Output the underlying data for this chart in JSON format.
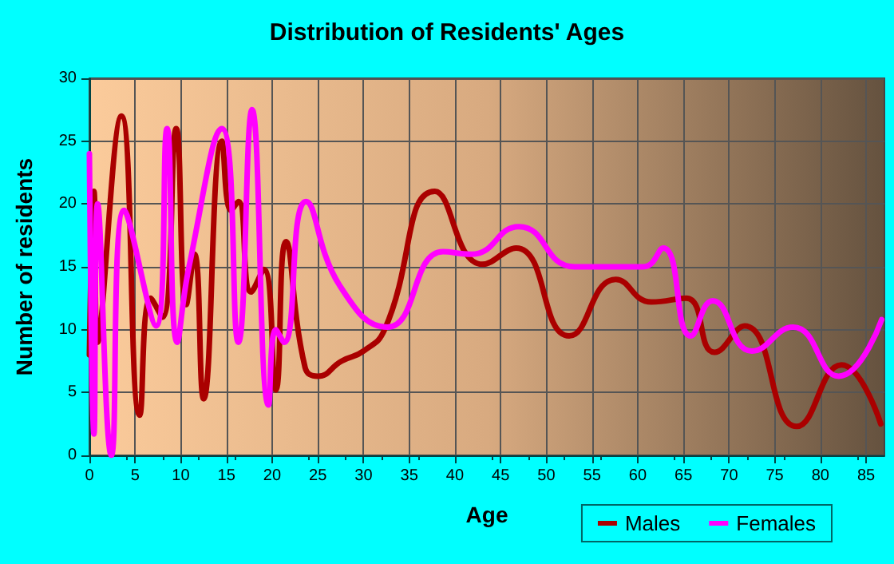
{
  "chart_data": {
    "type": "line",
    "title": "Distribution of Residents' Ages",
    "xlabel": "Age",
    "ylabel": "Number of residents",
    "xlim": [
      0,
      87
    ],
    "xticks": [
      0,
      5,
      10,
      15,
      20,
      25,
      30,
      35,
      40,
      45,
      50,
      55,
      60,
      65,
      70,
      75,
      80,
      85
    ],
    "ylim": [
      0,
      30
    ],
    "yticks": [
      0,
      5,
      10,
      15,
      20,
      25,
      30
    ],
    "grid": true,
    "legend": "bottom right",
    "marker": "none",
    "line_style": "solid",
    "series": [
      {
        "name": "Males",
        "color": "#aa0000",
        "x": [
          0,
          0.5,
          0.9,
          3.5,
          5.5,
          6.7,
          8,
          9.5,
          10.6,
          11.5,
          12.5,
          14.5,
          15.5,
          16.3,
          17.7,
          19.1,
          20.4,
          21.5,
          23.6,
          25,
          27.6,
          30,
          32.3,
          37.8,
          43,
          46.7,
          52.5,
          57.6,
          61.5,
          65.3,
          68.4,
          71.7,
          77.4,
          82.3,
          86.6
        ],
        "values": [
          8,
          21,
          9,
          27,
          3.2,
          12.5,
          11,
          26,
          12,
          16,
          4.5,
          25,
          19.5,
          20.2,
          13,
          14.8,
          5.2,
          17,
          7,
          6.3,
          7.5,
          8.3,
          10,
          21,
          15.2,
          16.5,
          9.5,
          14,
          12.2,
          12.5,
          8.2,
          10.3,
          2.3,
          7.2,
          2.5
        ]
      },
      {
        "name": "Females",
        "color": "#ff00ff",
        "x": [
          0,
          0.5,
          0.9,
          2.4,
          3.8,
          7.3,
          8.5,
          9.6,
          10.9,
          14.5,
          16.3,
          17.8,
          19.6,
          20.4,
          21.3,
          23.7,
          27.4,
          32.6,
          38.7,
          41.8,
          47,
          53.1,
          60.6,
          62.8,
          65.8,
          68.2,
          72.5,
          77,
          82,
          86.7
        ],
        "values": [
          24,
          1.7,
          20,
          0,
          19.5,
          10.3,
          26,
          9,
          15,
          26,
          9,
          27.5,
          4,
          10,
          9,
          20.2,
          13.5,
          10.2,
          16.2,
          16,
          18.2,
          15,
          15,
          16.5,
          9.5,
          12.3,
          8.3,
          10.2,
          6.3,
          10.8
        ]
      }
    ]
  }
}
